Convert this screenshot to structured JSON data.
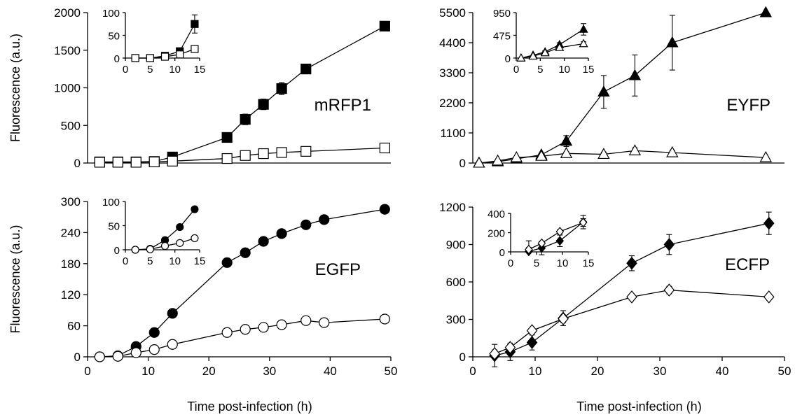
{
  "figure": {
    "y_axis_label": "Fluorescence (a.u.)",
    "x_axis_label": "Time post-infection (h)"
  },
  "chart_data": [
    {
      "type": "line",
      "label": "mRFP1",
      "xlabel": "",
      "ylabel": "Fluorescence (a.u.)",
      "xlim": [
        0,
        50
      ],
      "ylim": [
        0,
        2000
      ],
      "xticks": [],
      "yticks": [
        0,
        500,
        1000,
        1500,
        2000
      ],
      "marker_filled": "square-filled",
      "marker_open": "square-open",
      "series": [
        {
          "fill": "filled",
          "x": [
            2,
            5,
            8,
            11,
            14,
            23,
            26,
            29,
            32,
            36,
            49
          ],
          "y": [
            15,
            15,
            15,
            20,
            80,
            340,
            580,
            780,
            990,
            1250,
            1820
          ],
          "err": [
            0,
            0,
            0,
            0,
            30,
            60,
            70,
            70,
            80,
            50,
            50
          ]
        },
        {
          "fill": "open",
          "x": [
            2,
            5,
            8,
            11,
            14,
            23,
            26,
            29,
            32,
            36,
            49
          ],
          "y": [
            10,
            10,
            10,
            15,
            25,
            60,
            100,
            125,
            140,
            155,
            200
          ],
          "err": [
            0,
            0,
            0,
            0,
            0,
            5,
            8,
            10,
            10,
            12,
            40
          ]
        }
      ],
      "inset": {
        "xlim": [
          0,
          15
        ],
        "ylim": [
          0,
          100
        ],
        "xticks": [
          0,
          5,
          10,
          15
        ],
        "yticks": [
          0,
          50,
          100
        ],
        "series": [
          {
            "fill": "filled",
            "x": [
              2,
              5,
              8,
              11,
              14
            ],
            "y": [
              0,
              0,
              5,
              15,
              75
            ],
            "err": [
              0,
              0,
              0,
              5,
              20
            ]
          },
          {
            "fill": "open",
            "x": [
              2,
              5,
              8,
              11,
              14
            ],
            "y": [
              0,
              0,
              3,
              8,
              20
            ],
            "err": [
              0,
              0,
              0,
              0,
              3
            ]
          }
        ]
      }
    },
    {
      "type": "line",
      "label": "EYFP",
      "xlabel": "",
      "ylabel": "",
      "xlim": [
        0,
        50
      ],
      "ylim": [
        0,
        5500
      ],
      "xticks": [],
      "yticks": [
        0,
        1100,
        2200,
        3300,
        4400,
        5500
      ],
      "marker_filled": "triangle-filled",
      "marker_open": "triangle-open",
      "series": [
        {
          "fill": "filled",
          "x": [
            1,
            4,
            7,
            11,
            15,
            21,
            26,
            32,
            47
          ],
          "y": [
            0,
            50,
            150,
            300,
            800,
            2600,
            3200,
            4400,
            5500
          ],
          "err": [
            0,
            0,
            0,
            50,
            200,
            600,
            750,
            1000,
            0
          ]
        },
        {
          "fill": "open",
          "x": [
            1,
            4,
            7,
            11,
            15,
            21,
            26,
            32,
            47
          ],
          "y": [
            0,
            80,
            200,
            250,
            350,
            320,
            450,
            380,
            200
          ],
          "err": [
            0,
            0,
            0,
            30,
            60,
            80,
            100,
            80,
            40
          ]
        }
      ],
      "inset": {
        "xlim": [
          0,
          15
        ],
        "ylim": [
          0,
          950
        ],
        "xticks": [
          0,
          5,
          10,
          15
        ],
        "yticks": [
          0,
          475,
          950
        ],
        "series": [
          {
            "fill": "filled",
            "x": [
              1,
              3.5,
              6,
              9,
              14
            ],
            "y": [
              0,
              60,
              130,
              280,
              600
            ],
            "err": [
              0,
              0,
              20,
              40,
              120
            ]
          },
          {
            "fill": "open",
            "x": [
              1,
              3.5,
              6,
              9,
              14
            ],
            "y": [
              0,
              40,
              110,
              220,
              300
            ],
            "err": [
              0,
              0,
              20,
              30,
              40
            ]
          }
        ]
      }
    },
    {
      "type": "line",
      "label": "EGFP",
      "xlabel": "Time post-infection (h)",
      "ylabel": "Fluorescence (a.u.)",
      "xlim": [
        0,
        50
      ],
      "ylim": [
        0,
        300
      ],
      "xticks": [
        0,
        10,
        20,
        30,
        40,
        50
      ],
      "yticks": [
        0,
        60,
        120,
        180,
        240,
        300
      ],
      "marker_filled": "circle-filled",
      "marker_open": "circle-open",
      "series": [
        {
          "fill": "filled",
          "x": [
            2,
            5,
            8,
            11,
            14,
            23,
            26,
            29,
            32,
            36,
            39,
            49
          ],
          "y": [
            0,
            2,
            20,
            47,
            84,
            182,
            201,
            223,
            238,
            255,
            265,
            285
          ],
          "err": [
            0,
            0,
            3,
            4,
            3,
            4,
            4,
            6,
            6,
            7,
            8,
            7
          ]
        },
        {
          "fill": "open",
          "x": [
            2,
            5,
            8,
            11,
            14,
            23,
            26,
            29,
            32,
            36,
            39,
            49
          ],
          "y": [
            0,
            1,
            8,
            14,
            24,
            47,
            53,
            57,
            62,
            70,
            66,
            73
          ],
          "err": [
            0,
            0,
            2,
            2,
            2,
            3,
            3,
            3,
            4,
            4,
            4,
            4
          ]
        }
      ],
      "inset": {
        "xlim": [
          0,
          15
        ],
        "ylim": [
          0,
          100
        ],
        "xticks": [
          0,
          5,
          10,
          15
        ],
        "yticks": [
          0,
          50,
          100
        ],
        "series": [
          {
            "fill": "filled",
            "x": [
              2,
              5,
              8,
              11,
              14
            ],
            "y": [
              0,
              2,
              20,
              47,
              84
            ],
            "err": [
              0,
              0,
              3,
              4,
              4
            ]
          },
          {
            "fill": "open",
            "x": [
              2,
              5,
              8,
              11,
              14
            ],
            "y": [
              0,
              1,
              8,
              14,
              24
            ],
            "err": [
              0,
              0,
              2,
              2,
              2
            ]
          }
        ]
      }
    },
    {
      "type": "line",
      "label": "ECFP",
      "xlabel": "Time post-infection (h)",
      "ylabel": "",
      "xlim": [
        0,
        50
      ],
      "ylim": [
        0,
        1200
      ],
      "xticks": [
        0,
        10,
        20,
        30,
        40,
        50
      ],
      "yticks": [
        0,
        300,
        600,
        900,
        1200
      ],
      "marker_filled": "diamond-filled",
      "marker_open": "diamond-open",
      "series": [
        {
          "fill": "filled",
          "x": [
            3.5,
            6,
            9.5,
            14.5,
            25.5,
            31.5,
            47.5
          ],
          "y": [
            10,
            40,
            115,
            310,
            750,
            900,
            1070
          ],
          "err": [
            90,
            70,
            60,
            60,
            60,
            80,
            90
          ]
        },
        {
          "fill": "open",
          "x": [
            3.5,
            6,
            9.5,
            14.5,
            25.5,
            31.5,
            47.5
          ],
          "y": [
            25,
            75,
            210,
            305,
            480,
            535,
            480
          ],
          "err": [
            30,
            20,
            20,
            30,
            20,
            30,
            15
          ]
        }
      ],
      "inset": {
        "xlim": [
          0,
          15
        ],
        "ylim": [
          0,
          400
        ],
        "xticks": [
          0,
          5,
          10,
          15
        ],
        "yticks": [
          0,
          200,
          400
        ],
        "series": [
          {
            "fill": "filled",
            "x": [
              3.5,
              6,
              9.5,
              14
            ],
            "y": [
              5,
              40,
              115,
              310
            ],
            "err": [
              110,
              70,
              60,
              70
            ]
          },
          {
            "fill": "open",
            "x": [
              3.5,
              6,
              9.5,
              14
            ],
            "y": [
              25,
              90,
              210,
              305
            ],
            "err": [
              20,
              20,
              20,
              40
            ]
          }
        ]
      }
    }
  ]
}
